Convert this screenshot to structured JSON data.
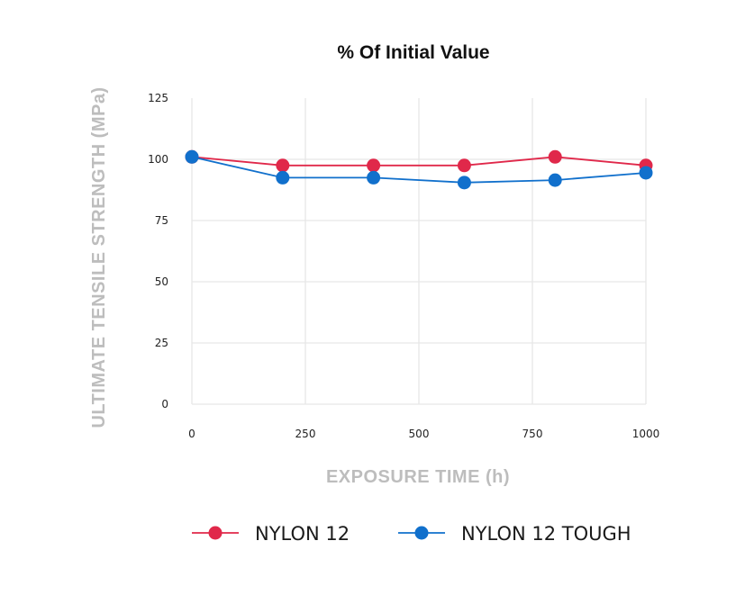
{
  "chart_data": {
    "type": "line",
    "title": "% Of Initial Value",
    "xlabel": "EXPOSURE TIME (h)",
    "ylabel": "ULTIMATE TENSILE STRENGTH (MPa)",
    "xlim": [
      0,
      1000
    ],
    "ylim": [
      0,
      125
    ],
    "x_ticks": [
      0,
      250,
      500,
      750,
      1000
    ],
    "y_ticks": [
      0,
      25,
      50,
      75,
      100,
      125
    ],
    "grid": true,
    "legend_position": "bottom",
    "x": [
      0,
      200,
      400,
      600,
      800,
      1000
    ],
    "series": [
      {
        "name": "NYLON 12",
        "color": "#e0284a",
        "values": [
          101,
          97.5,
          97.5,
          97.5,
          101,
          97.5
        ]
      },
      {
        "name": "NYLON 12 TOUGH",
        "color": "#1170cc",
        "values": [
          101,
          92.5,
          92.5,
          90.5,
          91.5,
          94.5
        ]
      }
    ]
  }
}
